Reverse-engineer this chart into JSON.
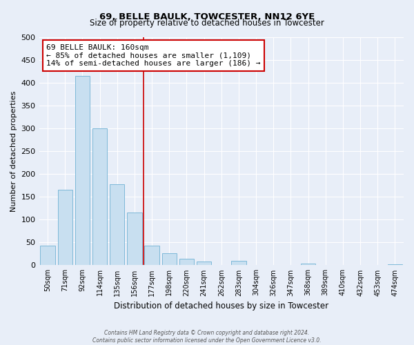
{
  "title": "69, BELLE BAULK, TOWCESTER, NN12 6YE",
  "subtitle": "Size of property relative to detached houses in Towcester",
  "xlabel": "Distribution of detached houses by size in Towcester",
  "ylabel": "Number of detached properties",
  "bar_labels": [
    "50sqm",
    "71sqm",
    "92sqm",
    "114sqm",
    "135sqm",
    "156sqm",
    "177sqm",
    "198sqm",
    "220sqm",
    "241sqm",
    "262sqm",
    "283sqm",
    "304sqm",
    "326sqm",
    "347sqm",
    "368sqm",
    "389sqm",
    "410sqm",
    "432sqm",
    "453sqm",
    "474sqm"
  ],
  "bar_values": [
    43,
    165,
    415,
    300,
    177,
    115,
    43,
    27,
    14,
    8,
    0,
    10,
    0,
    0,
    0,
    3,
    0,
    0,
    0,
    0,
    2
  ],
  "bar_color": "#c8dff0",
  "bar_edge_color": "#7db8d8",
  "ylim": [
    0,
    500
  ],
  "yticks": [
    0,
    50,
    100,
    150,
    200,
    250,
    300,
    350,
    400,
    450,
    500
  ],
  "property_line_x": 5.5,
  "property_line_color": "#cc0000",
  "annotation_title": "69 BELLE BAULK: 160sqm",
  "annotation_line1": "← 85% of detached houses are smaller (1,109)",
  "annotation_line2": "14% of semi-detached houses are larger (186) →",
  "annotation_box_color": "#ffffff",
  "annotation_box_edge": "#cc0000",
  "footer1": "Contains HM Land Registry data © Crown copyright and database right 2024.",
  "footer2": "Contains public sector information licensed under the Open Government Licence v3.0.",
  "background_color": "#e8eef8",
  "plot_background": "#e8eef8",
  "grid_color": "#ffffff"
}
